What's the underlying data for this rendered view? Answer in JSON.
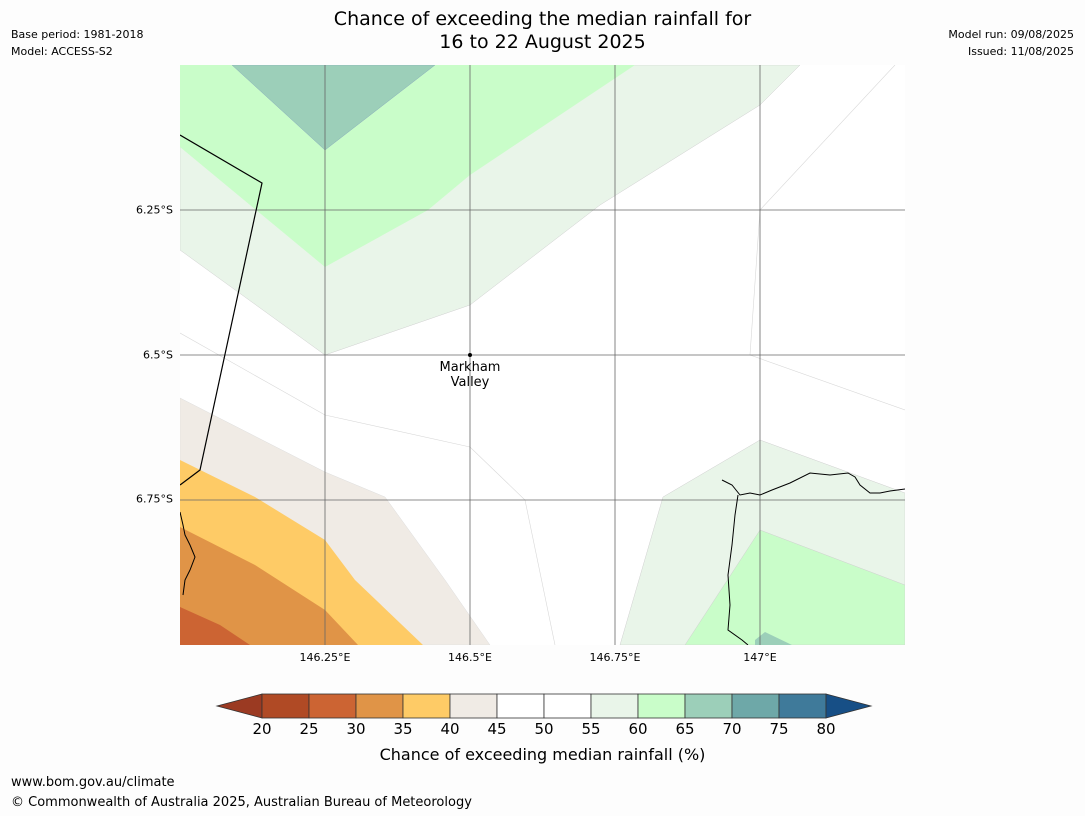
{
  "title_line1": "Chance of exceeding the median rainfall for",
  "title_line2": "16 to 22 August 2025",
  "meta_left": [
    "Base period: 1981-2018",
    "Model: ACCESS-S2"
  ],
  "meta_right": [
    "Model run: 09/08/2025",
    "Issued: 11/08/2025"
  ],
  "lat_labels": [
    "6.25°S",
    "6.5°S",
    "6.75°S"
  ],
  "lon_labels": [
    "146.25°E",
    "146.5°E",
    "146.75°E",
    "147°E"
  ],
  "place": {
    "line1": "Markham",
    "line2": "Valley"
  },
  "colorbar": {
    "label": "Chance of exceeding median rainfall (%)",
    "ticks": [
      "20",
      "25",
      "30",
      "35",
      "40",
      "45",
      "50",
      "55",
      "60",
      "65",
      "70",
      "75",
      "80"
    ],
    "colors": {
      "under": "#9b3a22",
      "20-25": "#b04a25",
      "25-30": "#cc6433",
      "30-35": "#e09447",
      "35-40": "#fecb66",
      "40-45": "#f0ebe5",
      "45-50": "#ffffff",
      "50-55": "#ffffff",
      "55-60": "#e9f5e9",
      "60-65": "#c9fdc9",
      "65-70": "#9ccfb9",
      "70-75": "#6ea8a8",
      "75-80": "#3f7a9a",
      "over": "#174f86"
    }
  },
  "footer": {
    "url": "www.bom.gov.au/climate",
    "copyright": "© Commonwealth of Australia 2025, Australian Bureau of Meteorology"
  }
}
